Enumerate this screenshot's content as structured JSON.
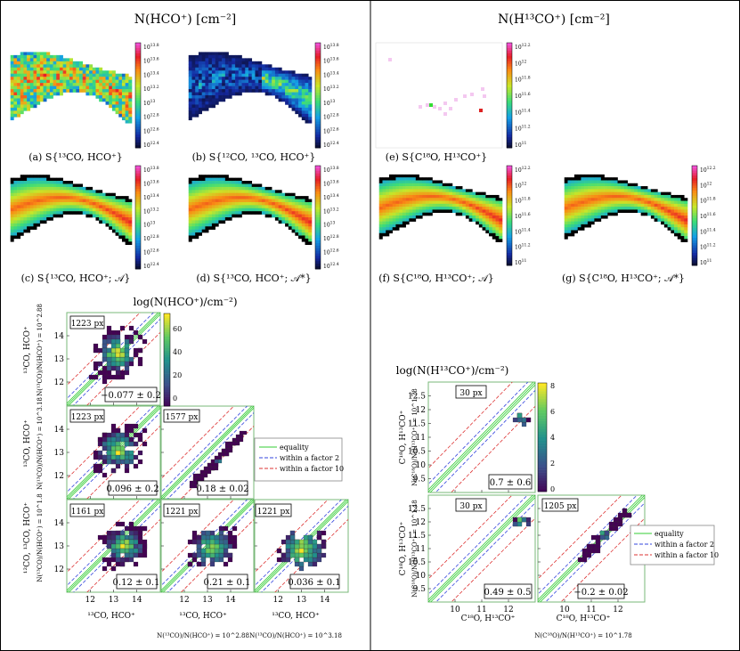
{
  "left": {
    "title": "N(HCO⁺) [cm⁻²]",
    "maps": [
      {
        "caption": "(a) S{¹³CO, HCO⁺}",
        "colorbar_ticks": [
          "10^13.8",
          "10^13.6",
          "10^13.4",
          "10^13.2",
          "10^13",
          "10^12.8",
          "10^12.6",
          "10^12.4"
        ]
      },
      {
        "caption": "(b) S{¹²CO, ¹³CO, HCO⁺}",
        "colorbar_ticks": [
          "10^13.8",
          "10^13.6",
          "10^13.4",
          "10^13.2",
          "10^13",
          "10^12.8",
          "10^12.6",
          "10^12.4"
        ]
      },
      {
        "caption": "(c) S{¹³CO, HCO⁺; 𝒜}",
        "colorbar_ticks": [
          "10^13.8",
          "10^13.6",
          "10^13.4",
          "10^13.2",
          "10^13",
          "10^12.8",
          "10^12.6",
          "10^12.4"
        ]
      },
      {
        "caption": "(d) S{¹³CO, HCO⁺; 𝒜*}",
        "colorbar_ticks": [
          "10^13.8",
          "10^13.6",
          "10^13.4",
          "10^13.2",
          "10^13",
          "10^12.8",
          "10^12.6",
          "10^12.4"
        ]
      }
    ],
    "hist_title": "log(N(HCO⁺)/cm⁻²)",
    "hist_cbar_ticks": [
      "60",
      "40",
      "20",
      "0"
    ],
    "panels": [
      {
        "count": "1223 px",
        "value": "−0.077 ± 0.2",
        "ylabel": "¹³CO, HCO⁺",
        "ysub": "N(¹³CO)/N(HCO⁺) = 10^2.88"
      },
      {
        "count": "1223 px",
        "value": "0.096 ± 0.2",
        "ylabel": "¹³CO, HCO⁺",
        "ysub": "N(¹³CO)/N(HCO⁺) = 10^3.18"
      },
      {
        "count": "1577 px",
        "value": "0.18 ± 0.02"
      },
      {
        "count": "1161 px",
        "value": "0.12 ± 0.1",
        "ylabel": "¹²CO, ¹³CO, HCO⁺",
        "ysub": "N(¹³CO)/N(HCO⁺) = 10^1.8"
      },
      {
        "count": "1221 px",
        "value": "0.21 ± 0.1"
      },
      {
        "count": "1221 px",
        "value": "0.036 ± 0.1"
      }
    ],
    "xlabels": [
      {
        "label": "¹³CO, HCO⁺",
        "sub": ""
      },
      {
        "label": "¹³CO, HCO⁺",
        "sub": "N(¹³CO)/N(HCO⁺) = 10^2.88"
      },
      {
        "label": "¹³CO, HCO⁺",
        "sub": "N(¹³CO)/N(HCO⁺) = 10^3.18"
      }
    ],
    "xticks": [
      "12",
      "13",
      "14"
    ],
    "yticks": [
      "14",
      "13",
      "12"
    ]
  },
  "right": {
    "title": "N(H¹³CO⁺) [cm⁻²]",
    "maps": [
      {
        "caption": "(e) S{C¹⁸O, H¹³CO⁺}",
        "colorbar_ticks": [
          "10^12.2",
          "10^12",
          "10^11.8",
          "10^11.6",
          "10^11.4",
          "10^11.2",
          "10^11"
        ]
      },
      {
        "caption": "(f) S{C¹⁸O, H¹³CO⁺; 𝒜}",
        "colorbar_ticks": [
          "10^12.2",
          "10^12",
          "10^11.8",
          "10^11.6",
          "10^11.4",
          "10^11.2",
          "10^11"
        ]
      },
      {
        "caption": "(g) S{C¹⁸O, H¹³CO⁺; 𝒜*}",
        "colorbar_ticks": [
          "10^12.2",
          "10^12",
          "10^11.8",
          "10^11.6",
          "10^11.4",
          "10^11.2",
          "10^11"
        ]
      }
    ],
    "hist_title": "log(N(H¹³CO⁺)/cm⁻²)",
    "hist_cbar_ticks": [
      "8",
      "6",
      "4",
      "2",
      "0"
    ],
    "panels": [
      {
        "count": "30 px",
        "value": "0.7 ± 0.6",
        "ylabel": "C¹⁸O, H¹³CO⁺",
        "ysub": "N(C¹⁸O)/N(H¹³CO⁺) = 10^1.78"
      },
      {
        "count": "30 px",
        "value": "0.49 ± 0.5",
        "ylabel": "C¹⁸O, H¹³CO⁺",
        "ysub": "N(C¹⁸O)/N(H¹³CO⁺) = 10^1.48"
      },
      {
        "count": "1205 px",
        "value": "−0.2 ± 0.02"
      }
    ],
    "xlabels": [
      {
        "label": "C¹⁸O, H¹³CO⁺",
        "sub": ""
      },
      {
        "label": "C¹⁸O, H¹³CO⁺",
        "sub": "N(C¹⁸O)/N(H¹³CO⁺) = 10^1.78"
      }
    ],
    "xticks": [
      "10",
      "11",
      "12"
    ],
    "yticks": [
      "12.5",
      "12",
      "11.5",
      "11",
      "10.5",
      "10",
      "9.5"
    ]
  },
  "legend": {
    "equality": "equality",
    "factor2": "within a factor 2",
    "factor10": "within a factor 10"
  },
  "colors": {
    "equality": "#33cc33",
    "factor2": "#3344dd",
    "factor10": "#dd3333",
    "panel_border": "#7ab87a"
  }
}
